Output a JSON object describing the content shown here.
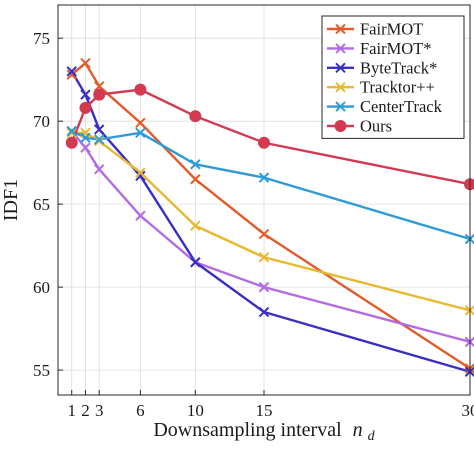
{
  "chart_data": {
    "type": "line",
    "xlabel": "Downsampling interval",
    "xlabel_symbol": "n",
    "xlabel_subscript": "d",
    "ylabel": "IDF1",
    "x_ticks": [
      1,
      2,
      3,
      6,
      10,
      15,
      30
    ],
    "y_ticks": [
      55,
      60,
      65,
      70,
      75
    ],
    "xlim": [
      0,
      30
    ],
    "ylim": [
      53.5,
      77
    ],
    "grid": true,
    "legend_position": "top-right",
    "series": [
      {
        "name": "FairMOT",
        "color": "#e05c2a",
        "marker": "x",
        "x": [
          1,
          2,
          3,
          6,
          10,
          15,
          30
        ],
        "y": [
          72.8,
          73.5,
          72.1,
          69.9,
          66.5,
          63.2,
          55.1
        ]
      },
      {
        "name": "FairMOT*",
        "color": "#b36ae2",
        "marker": "x",
        "x": [
          1,
          2,
          3,
          6,
          10,
          15,
          30
        ],
        "y": [
          69.4,
          68.4,
          67.1,
          64.3,
          61.5,
          60.0,
          56.7
        ]
      },
      {
        "name": "ByteTrack*",
        "color": "#3a2fc2",
        "marker": "x",
        "x": [
          1,
          2,
          3,
          6,
          10,
          15,
          30
        ],
        "y": [
          73.0,
          71.6,
          69.5,
          66.7,
          61.5,
          58.5,
          54.9
        ]
      },
      {
        "name": "Tracktor++",
        "color": "#e8b830",
        "marker": "x",
        "x": [
          1,
          2,
          3,
          6,
          10,
          15,
          30
        ],
        "y": [
          69.3,
          69.3,
          68.8,
          66.9,
          63.7,
          61.8,
          58.6
        ]
      },
      {
        "name": "CenterTrack",
        "color": "#2e9bd6",
        "marker": "x",
        "x": [
          1,
          2,
          3,
          6,
          10,
          15,
          30
        ],
        "y": [
          69.4,
          69.0,
          68.9,
          69.3,
          67.4,
          66.6,
          62.9
        ]
      },
      {
        "name": "Ours",
        "color": "#d23a52",
        "marker": "o",
        "x": [
          1,
          2,
          3,
          6,
          10,
          15,
          30
        ],
        "y": [
          68.7,
          70.8,
          71.6,
          71.9,
          70.3,
          68.7,
          66.2
        ]
      }
    ]
  }
}
